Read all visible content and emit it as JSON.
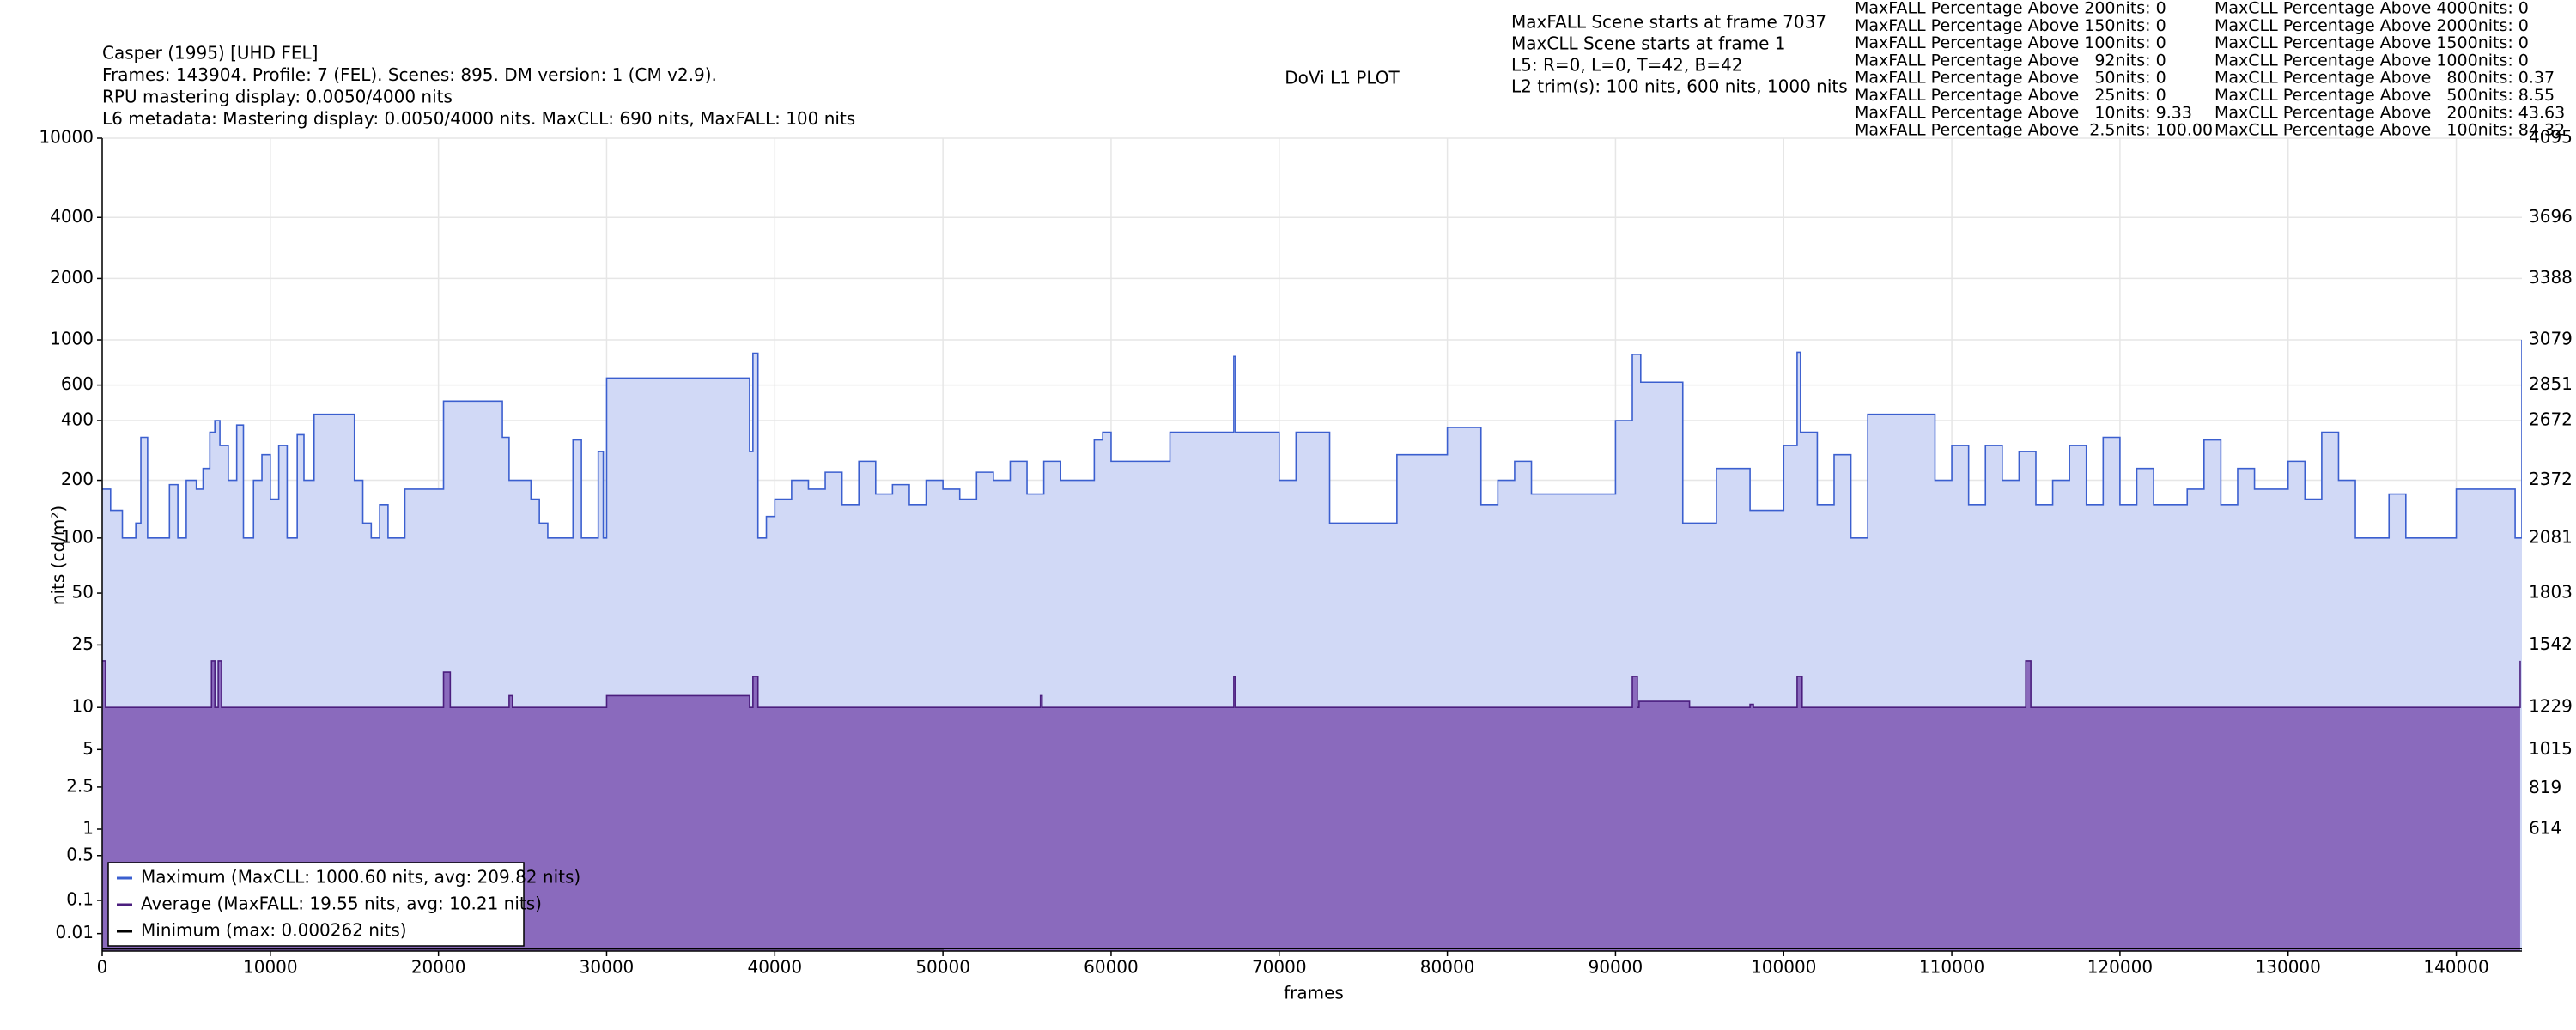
{
  "chart_data": {
    "type": "line",
    "title": "DoVi L1 PLOT",
    "info_left": [
      "Casper (1995) [UHD FEL]",
      "Frames: 143904. Profile: 7 (FEL). Scenes: 895. DM version: 1 (CM v2.9).",
      "RPU mastering display: 0.0050/4000 nits",
      "L6 metadata: Mastering display: 0.0050/4000 nits. MaxCLL: 690 nits, MaxFALL: 100 nits"
    ],
    "info_mid": [
      "MaxFALL Scene starts at frame 7037",
      "MaxCLL Scene starts at frame 1",
      "L5: R=0, L=0, T=42, B=42",
      "L2 trim(s): 100 nits, 600 nits, 1000 nits"
    ],
    "stats_maxfall": [
      "MaxFALL Percentage Above 200nits: 0",
      "MaxFALL Percentage Above 150nits: 0",
      "MaxFALL Percentage Above 100nits: 0",
      "MaxFALL Percentage Above   92nits: 0",
      "MaxFALL Percentage Above   50nits: 0",
      "MaxFALL Percentage Above   25nits: 0",
      "MaxFALL Percentage Above   10nits: 9.33",
      "MaxFALL Percentage Above  2.5nits: 100.00"
    ],
    "stats_maxcll": [
      "MaxCLL Percentage Above 4000nits: 0",
      "MaxCLL Percentage Above 2000nits: 0",
      "MaxCLL Percentage Above 1500nits: 0",
      "MaxCLL Percentage Above 1000nits: 0",
      "MaxCLL Percentage Above   800nits: 0.37",
      "MaxCLL Percentage Above   500nits: 8.55",
      "MaxCLL Percentage Above   200nits: 43.63",
      "MaxCLL Percentage Above   100nits: 84.32"
    ],
    "xlabel": "frames",
    "ylabel": "nits (cd/m²)",
    "xlim": [
      0,
      143904
    ],
    "xticks": [
      0,
      10000,
      20000,
      30000,
      40000,
      50000,
      60000,
      70000,
      80000,
      90000,
      100000,
      110000,
      120000,
      130000,
      140000
    ],
    "yscale": "pq",
    "ylim": [
      0,
      10000
    ],
    "yticks": [
      0.01,
      0.1,
      0.5,
      1,
      2.5,
      5,
      10,
      25,
      50,
      100,
      200,
      400,
      600,
      1000,
      2000,
      4000,
      10000
    ],
    "y2lim": [
      0,
      4095
    ],
    "y2ticks": [
      614,
      819,
      1015,
      1229,
      1542,
      1803,
      2081,
      2372,
      2672,
      2851,
      3079,
      3388,
      3696,
      4095
    ],
    "grid": true,
    "legend": "lower left",
    "series": [
      {
        "name": "Maximum (MaxCLL: 1000.60 nits, avg: 209.82 nits)",
        "color": "#3b5fcf",
        "fill": "#d1d9f6",
        "x": [
          0,
          500,
          1200,
          2000,
          2300,
          2700,
          3800,
          4000,
          4500,
          5000,
          5600,
          6000,
          6400,
          6700,
          7000,
          7500,
          8000,
          8400,
          9000,
          9500,
          10000,
          10500,
          11000,
          11600,
          12000,
          12600,
          15000,
          15500,
          16000,
          16500,
          17000,
          18000,
          20300,
          23800,
          24200,
          25500,
          26000,
          26500,
          28000,
          28500,
          29500,
          29800,
          30000,
          38500,
          38700,
          39000,
          39500,
          40000,
          41000,
          42000,
          43000,
          44000,
          45000,
          46000,
          47000,
          48000,
          49000,
          50000,
          51000,
          52000,
          53000,
          54000,
          55000,
          56000,
          57000,
          59000,
          59500,
          60000,
          63500,
          67300,
          67400,
          68000,
          70000,
          71000,
          73000,
          77000,
          80000,
          82000,
          83000,
          84000,
          85000,
          90000,
          91000,
          91500,
          94000,
          96000,
          98000,
          100000,
          100800,
          101000,
          102000,
          103000,
          104000,
          105000,
          109000,
          110000,
          111000,
          112000,
          113000,
          114000,
          115000,
          116000,
          117000,
          118000,
          119000,
          120000,
          121000,
          122000,
          124000,
          125000,
          126000,
          127000,
          128000,
          130000,
          131000,
          132000,
          133000,
          134000,
          136000,
          137000,
          140000,
          143500,
          143904
        ],
        "values": [
          180,
          140,
          100,
          120,
          330,
          100,
          100,
          190,
          100,
          200,
          180,
          230,
          350,
          400,
          300,
          200,
          380,
          100,
          200,
          270,
          160,
          300,
          100,
          340,
          200,
          430,
          200,
          120,
          100,
          150,
          100,
          180,
          500,
          330,
          200,
          160,
          120,
          100,
          320,
          100,
          280,
          100,
          650,
          280,
          860,
          100,
          130,
          160,
          200,
          180,
          220,
          150,
          250,
          170,
          190,
          150,
          200,
          180,
          160,
          220,
          200,
          250,
          170,
          250,
          200,
          320,
          350,
          250,
          350,
          830,
          350,
          350,
          200,
          350,
          120,
          270,
          370,
          150,
          200,
          250,
          170,
          400,
          850,
          620,
          120,
          230,
          140,
          300,
          870,
          350,
          150,
          270,
          100,
          430,
          200,
          300,
          150,
          300,
          200,
          280,
          150,
          200,
          300,
          150,
          330,
          150,
          230,
          150,
          180,
          320,
          150,
          230,
          180,
          250,
          160,
          350,
          200,
          100,
          170,
          100,
          180,
          100,
          1000
        ]
      },
      {
        "name": "Average (MaxFALL: 19.55 nits, avg: 10.21 nits)",
        "color": "#4b1e7e",
        "fill": "#8a6abd",
        "x": [
          0,
          200,
          6500,
          6700,
          6900,
          7100,
          20300,
          20700,
          24200,
          24400,
          30000,
          38500,
          38700,
          39000,
          55800,
          55900,
          67300,
          67400,
          91000,
          91300,
          91400,
          94400,
          98000,
          98200,
          100800,
          101100,
          114400,
          114700,
          143800
        ],
        "values": [
          20,
          10,
          20,
          10,
          20,
          10,
          17,
          10,
          12,
          10,
          12,
          10,
          16,
          10,
          12,
          10,
          16,
          10,
          16,
          10,
          11,
          10,
          10.5,
          10,
          16,
          10,
          20,
          10,
          20
        ]
      },
      {
        "name": "Minimum (max: 0.000262 nits)",
        "color": "#000000",
        "x": [
          0,
          50000,
          143904
        ],
        "values": [
          0.0002,
          0.000262,
          0.0001
        ]
      }
    ]
  }
}
